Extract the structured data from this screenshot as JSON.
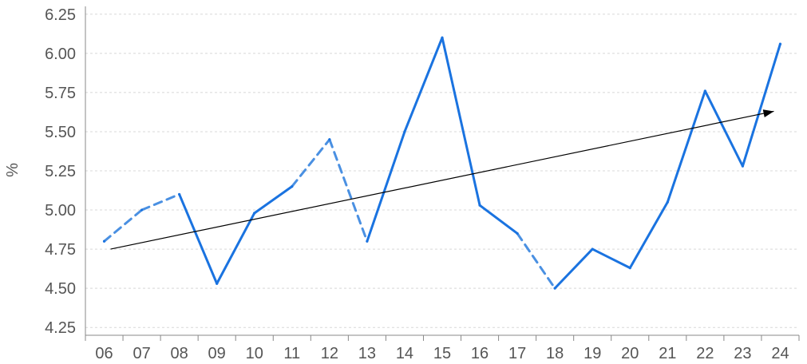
{
  "chart_data": {
    "type": "line",
    "categories": [
      "06",
      "07",
      "08",
      "09",
      "10",
      "11",
      "12",
      "13",
      "14",
      "15",
      "16",
      "17",
      "18",
      "19",
      "20",
      "21",
      "22",
      "23",
      "24"
    ],
    "series": [
      {
        "values": [
          4.8,
          5.0,
          5.1,
          4.53,
          4.98,
          5.15,
          5.45,
          4.8,
          5.5,
          6.1,
          5.03,
          4.85,
          4.5,
          4.75,
          4.63,
          5.05,
          5.76,
          5.28,
          6.06
        ],
        "color": "#1a73e0",
        "dashed_segments": [
          0,
          1,
          5,
          6,
          11
        ]
      }
    ],
    "trend": {
      "color": "#000000",
      "start": [
        0,
        4.75
      ],
      "end": [
        18,
        5.63
      ],
      "arrow": true
    },
    "ylabel": "%",
    "ylim": [
      4.2,
      6.3
    ],
    "yticks": [
      "4.25",
      "4.50",
      "4.75",
      "5.00",
      "5.25",
      "5.50",
      "5.75",
      "6.00",
      "6.25"
    ],
    "grid": true
  }
}
